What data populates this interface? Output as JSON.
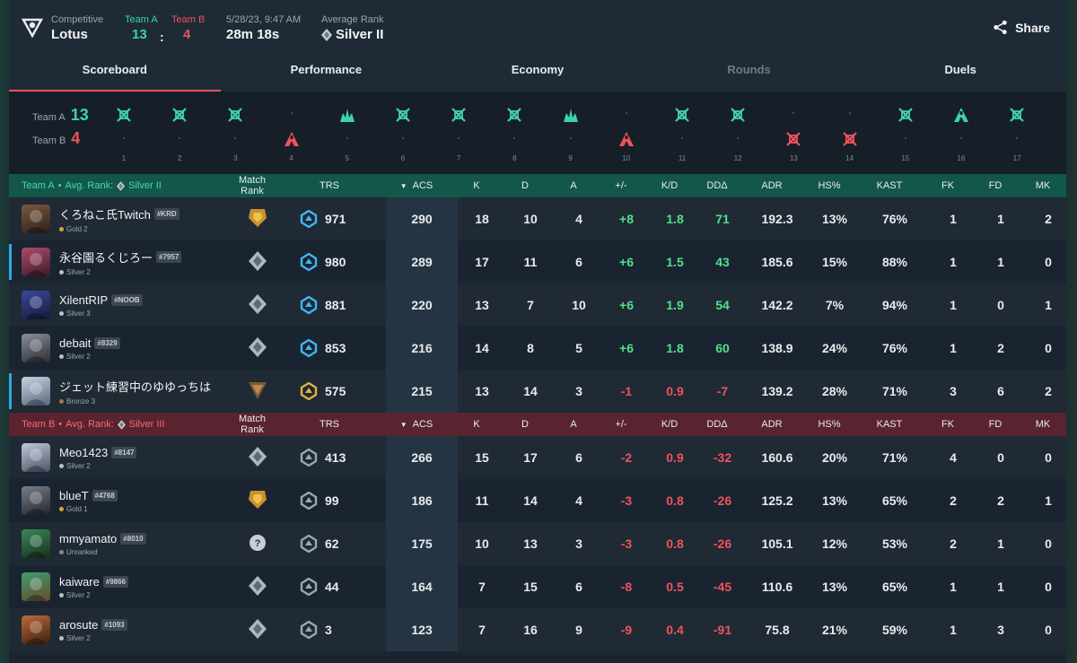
{
  "header": {
    "mode_label": "Competitive",
    "map": "Lotus",
    "team_a_label": "Team A",
    "team_b_label": "Team B",
    "team_a_score": "13",
    "team_b_score": "4",
    "colon": ":",
    "date": "5/28/23, 9:47 AM",
    "duration": "28m 18s",
    "avg_rank_label": "Average Rank",
    "avg_rank": "Silver II",
    "share_label": "Share"
  },
  "tabs": [
    "Scoreboard",
    "Performance",
    "Economy",
    "Rounds",
    "Duels"
  ],
  "timeline": {
    "team_a_label": "Team A",
    "team_a_score": "13",
    "team_b_label": "Team B",
    "team_b_score": "4",
    "rounds": [
      {
        "n": "1",
        "winner": "A",
        "type": "elim"
      },
      {
        "n": "2",
        "winner": "A",
        "type": "elim"
      },
      {
        "n": "3",
        "winner": "A",
        "type": "elim"
      },
      {
        "n": "4",
        "winner": "B",
        "type": "spike"
      },
      {
        "n": "5",
        "winner": "A",
        "type": "defuse"
      },
      {
        "n": "6",
        "winner": "A",
        "type": "elim"
      },
      {
        "n": "7",
        "winner": "A",
        "type": "elim"
      },
      {
        "n": "8",
        "winner": "A",
        "type": "elim"
      },
      {
        "n": "9",
        "winner": "A",
        "type": "defuse"
      },
      {
        "n": "10",
        "winner": "B",
        "type": "spike"
      },
      {
        "n": "11",
        "winner": "A",
        "type": "elim"
      },
      {
        "n": "12",
        "winner": "A",
        "type": "elim"
      },
      {
        "n": "13",
        "winner": "B",
        "type": "elim"
      },
      {
        "n": "14",
        "winner": "B",
        "type": "elim"
      },
      {
        "n": "15",
        "winner": "A",
        "type": "elim"
      },
      {
        "n": "16",
        "winner": "A",
        "type": "spike"
      },
      {
        "n": "17",
        "winner": "A",
        "type": "elim"
      }
    ]
  },
  "columns": {
    "match_rank": "Match Rank",
    "trs": "TRS",
    "acs": "ACS",
    "k": "K",
    "d": "D",
    "a": "A",
    "pm": "+/-",
    "kd": "K/D",
    "dd": "DDΔ",
    "adr": "ADR",
    "hs": "HS%",
    "kast": "KAST",
    "fk": "FK",
    "fd": "FD",
    "mk": "MK"
  },
  "team_a": {
    "label": "Team A",
    "bullet": "•",
    "avg_rank_label": "Avg. Rank:",
    "avg_rank": "Silver II",
    "players": [
      {
        "name": "くろねこ氏Twitch",
        "tag": "#KRD",
        "rank": "Gold 2",
        "rank_color": "#d9a441",
        "trs": "971",
        "acs": "290",
        "k": "18",
        "d": "10",
        "a": "4",
        "pm": "+8",
        "kd": "1.8",
        "dd": "71",
        "adr": "192.3",
        "hs": "13%",
        "kast": "76%",
        "fk": "1",
        "fd": "1",
        "mk": "2",
        "sign": "pos",
        "accent": false,
        "badge": "gold",
        "trs_color": "#3fb6f0",
        "av1": "#7a5a40",
        "av2": "#2a1f1a"
      },
      {
        "name": "永谷園るくじろー",
        "tag": "#7957",
        "rank": "Silver 2",
        "rank_color": "#b9c2c8",
        "trs": "980",
        "acs": "289",
        "k": "17",
        "d": "11",
        "a": "6",
        "pm": "+6",
        "kd": "1.5",
        "dd": "43",
        "adr": "185.6",
        "hs": "15%",
        "kast": "88%",
        "fk": "1",
        "fd": "1",
        "mk": "0",
        "sign": "pos",
        "accent": true,
        "badge": "silver",
        "trs_color": "#3fb6f0",
        "av1": "#b04a6a",
        "av2": "#3a1a2a"
      },
      {
        "name": "XilentRIP",
        "tag": "#NOOB",
        "rank": "Silver 3",
        "rank_color": "#b9c2c8",
        "trs": "881",
        "acs": "220",
        "k": "13",
        "d": "7",
        "a": "10",
        "pm": "+6",
        "kd": "1.9",
        "dd": "54",
        "adr": "142.2",
        "hs": "7%",
        "kast": "94%",
        "fk": "1",
        "fd": "0",
        "mk": "1",
        "sign": "pos",
        "accent": false,
        "badge": "silver",
        "trs_color": "#3fb6f0",
        "av1": "#3a4aa0",
        "av2": "#141a3a"
      },
      {
        "name": "debait",
        "tag": "#8329",
        "rank": "Silver 2",
        "rank_color": "#b9c2c8",
        "trs": "853",
        "acs": "216",
        "k": "14",
        "d": "8",
        "a": "5",
        "pm": "+6",
        "kd": "1.8",
        "dd": "60",
        "adr": "138.9",
        "hs": "24%",
        "kast": "76%",
        "fk": "1",
        "fd": "2",
        "mk": "0",
        "sign": "pos",
        "accent": false,
        "badge": "silver",
        "trs_color": "#3fb6f0",
        "av1": "#8a8f9a",
        "av2": "#2a2d33"
      },
      {
        "name": "ジェット練習中のゆゆっちは",
        "tag": "",
        "rank": "Bronze 3",
        "rank_color": "#a8743c",
        "trs": "575",
        "acs": "215",
        "k": "13",
        "d": "14",
        "a": "3",
        "pm": "-1",
        "kd": "0.9",
        "dd": "-7",
        "adr": "139.2",
        "hs": "28%",
        "kast": "71%",
        "fk": "3",
        "fd": "6",
        "mk": "2",
        "sign": "neg",
        "accent": true,
        "badge": "bronze",
        "trs_color": "#e0b040",
        "av1": "#c6d2e0",
        "av2": "#5a6a80"
      }
    ]
  },
  "team_b": {
    "label": "Team B",
    "bullet": "•",
    "avg_rank_label": "Avg. Rank:",
    "avg_rank": "Silver III",
    "players": [
      {
        "name": "Meo1423",
        "tag": "#8147",
        "rank": "Silver 2",
        "rank_color": "#b9c2c8",
        "trs": "413",
        "acs": "266",
        "k": "15",
        "d": "17",
        "a": "6",
        "pm": "-2",
        "kd": "0.9",
        "dd": "-32",
        "adr": "160.6",
        "hs": "20%",
        "kast": "71%",
        "fk": "4",
        "fd": "0",
        "mk": "0",
        "sign": "neg",
        "accent": false,
        "badge": "silver",
        "trs_color": "#9aa6b0",
        "av1": "#c0c8d8",
        "av2": "#4a5468"
      },
      {
        "name": "blueT",
        "tag": "#4768",
        "rank": "Gold 1",
        "rank_color": "#d9a441",
        "trs": "99",
        "acs": "186",
        "k": "11",
        "d": "14",
        "a": "4",
        "pm": "-3",
        "kd": "0.8",
        "dd": "-26",
        "adr": "125.2",
        "hs": "13%",
        "kast": "65%",
        "fk": "2",
        "fd": "2",
        "mk": "1",
        "sign": "neg",
        "accent": false,
        "badge": "gold",
        "trs_color": "#9aa6b0",
        "av1": "#7a7f8a",
        "av2": "#22252b"
      },
      {
        "name": "mmyamato",
        "tag": "#8010",
        "rank": "Unranked",
        "rank_color": "#7e8a94",
        "trs": "62",
        "acs": "175",
        "k": "10",
        "d": "13",
        "a": "3",
        "pm": "-3",
        "kd": "0.8",
        "dd": "-26",
        "adr": "105.1",
        "hs": "12%",
        "kast": "53%",
        "fk": "2",
        "fd": "1",
        "mk": "0",
        "sign": "neg",
        "accent": false,
        "badge": "unranked",
        "trs_color": "#9aa6b0",
        "av1": "#3a8a5a",
        "av2": "#15301f"
      },
      {
        "name": "kaiware",
        "tag": "#9866",
        "rank": "Silver 2",
        "rank_color": "#b9c2c8",
        "trs": "44",
        "acs": "164",
        "k": "7",
        "d": "15",
        "a": "6",
        "pm": "-8",
        "kd": "0.5",
        "dd": "-45",
        "adr": "110.6",
        "hs": "13%",
        "kast": "65%",
        "fk": "1",
        "fd": "1",
        "mk": "0",
        "sign": "neg",
        "accent": false,
        "badge": "silver",
        "trs_color": "#9aa6b0",
        "av1": "#3aa070",
        "av2": "#6a4a2a"
      },
      {
        "name": "arosute",
        "tag": "#1093",
        "rank": "Silver 2",
        "rank_color": "#b9c2c8",
        "trs": "3",
        "acs": "123",
        "k": "7",
        "d": "16",
        "a": "9",
        "pm": "-9",
        "kd": "0.4",
        "dd": "-91",
        "adr": "75.8",
        "hs": "21%",
        "kast": "59%",
        "fk": "1",
        "fd": "3",
        "mk": "0",
        "sign": "neg",
        "accent": false,
        "badge": "silver",
        "trs_color": "#9aa6b0",
        "av1": "#c06a3a",
        "av2": "#3a2010"
      }
    ]
  },
  "colors": {
    "team_a": "#3fd1b0",
    "team_b": "#f0525c",
    "accent": "#f0525c"
  }
}
